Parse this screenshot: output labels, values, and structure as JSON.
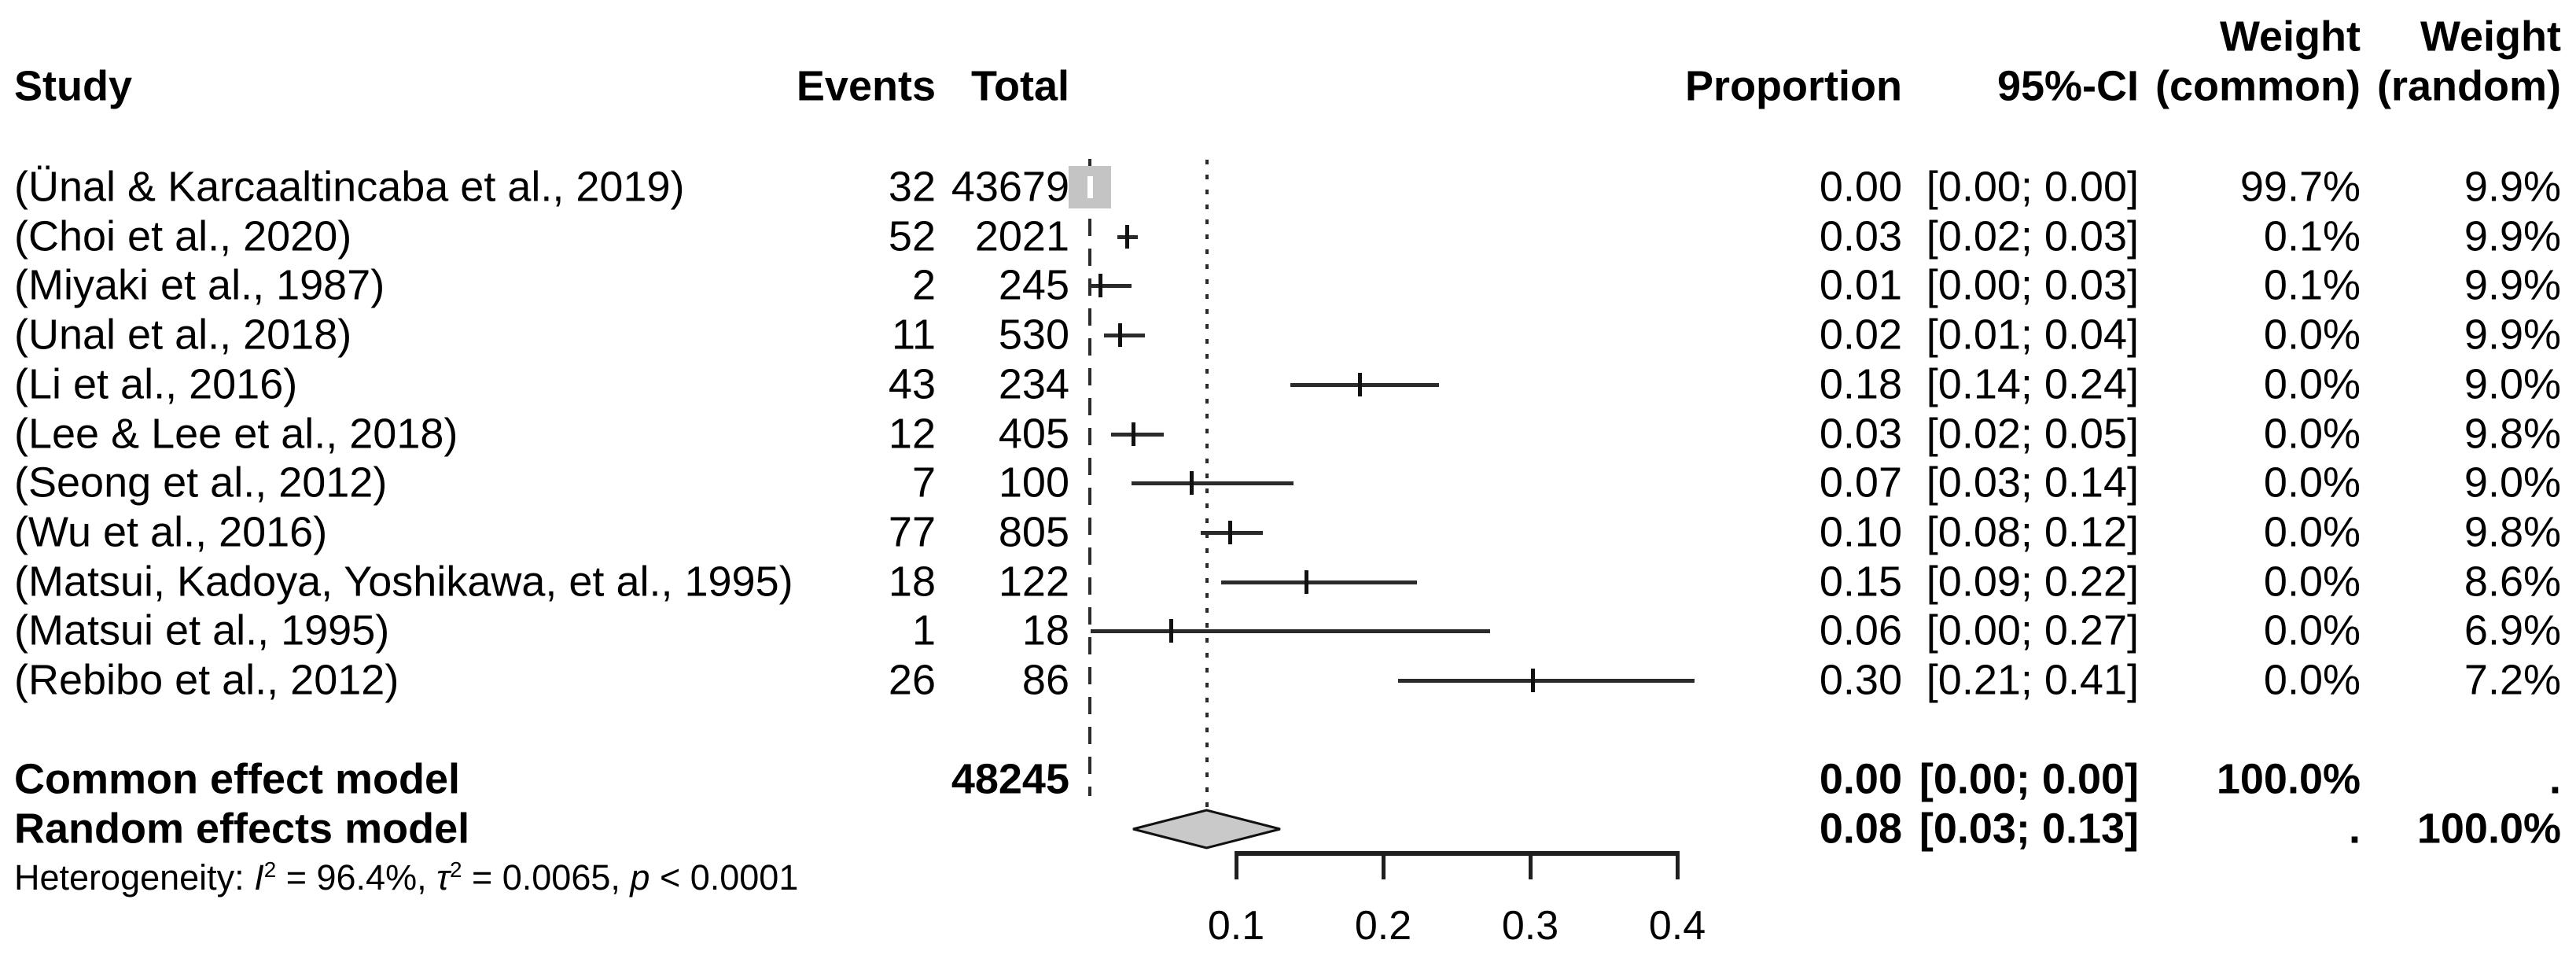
{
  "colors": {
    "background": "#ffffff",
    "text": "#000000",
    "line": "#2b2b2b",
    "square_fill": "#c4c4c4",
    "diamond_fill": "#c9c9c9",
    "diamond_stroke": "#111111"
  },
  "headers": {
    "study": "Study",
    "events": "Events",
    "total": "Total",
    "proportion": "Proportion",
    "ci": "95%-CI",
    "weight_line": "Weight",
    "weight_common_sub": "(common)",
    "weight_random_sub": "(random)"
  },
  "chart_data": {
    "type": "forest",
    "effect_measure": "Proportion",
    "x_axis": {
      "ticks": [
        0.1,
        0.2,
        0.3,
        0.4
      ],
      "tick_labels": [
        "0.1",
        "0.2",
        "0.3",
        "0.4"
      ],
      "range_shown": [
        0.0,
        0.45
      ],
      "grid": false
    },
    "reference_lines": [
      {
        "name": "common-effect-line",
        "style": "dashed",
        "value": 0.003
      },
      {
        "name": "random-effect-line",
        "style": "dotted",
        "value": 0.08
      }
    ],
    "studies": [
      {
        "study": "(Ünal & Karcaaltincaba et al., 2019)",
        "events": "32",
        "total": "43679",
        "proportion": "0.00",
        "ci": "[0.00; 0.00]",
        "weight_common": "99.7%",
        "weight_random": "9.9%",
        "point": 0.0007,
        "ci_lo": 0.0005,
        "ci_hi": 0.001,
        "marker": "large-square"
      },
      {
        "study": "(Choi et al., 2020)",
        "events": "52",
        "total": "2021",
        "proportion": "0.03",
        "ci": "[0.02; 0.03]",
        "weight_common": "0.1%",
        "weight_random": "9.9%",
        "point": 0.026,
        "ci_lo": 0.019,
        "ci_hi": 0.033,
        "marker": "point"
      },
      {
        "study": "(Miyaki et al., 1987)",
        "events": "2",
        "total": "245",
        "proportion": "0.01",
        "ci": "[0.00; 0.03]",
        "weight_common": "0.1%",
        "weight_random": "9.9%",
        "point": 0.008,
        "ci_lo": 0.001,
        "ci_hi": 0.029,
        "marker": "point"
      },
      {
        "study": "(Unal et al., 2018)",
        "events": "11",
        "total": "530",
        "proportion": "0.02",
        "ci": "[0.01; 0.04]",
        "weight_common": "0.0%",
        "weight_random": "9.9%",
        "point": 0.021,
        "ci_lo": 0.01,
        "ci_hi": 0.038,
        "marker": "point"
      },
      {
        "study": "(Li et al., 2016)",
        "events": "43",
        "total": "234",
        "proportion": "0.18",
        "ci": "[0.14; 0.24]",
        "weight_common": "0.0%",
        "weight_random": "9.0%",
        "point": 0.184,
        "ci_lo": 0.137,
        "ci_hi": 0.238,
        "marker": "point"
      },
      {
        "study": "(Lee & Lee et al., 2018)",
        "events": "12",
        "total": "405",
        "proportion": "0.03",
        "ci": "[0.02; 0.05]",
        "weight_common": "0.0%",
        "weight_random": "9.8%",
        "point": 0.03,
        "ci_lo": 0.015,
        "ci_hi": 0.051,
        "marker": "point"
      },
      {
        "study": "(Seong et al., 2012)",
        "events": "7",
        "total": "100",
        "proportion": "0.07",
        "ci": "[0.03; 0.14]",
        "weight_common": "0.0%",
        "weight_random": "9.0%",
        "point": 0.07,
        "ci_lo": 0.029,
        "ci_hi": 0.139,
        "marker": "point"
      },
      {
        "study": "(Wu et al., 2016)",
        "events": "77",
        "total": "805",
        "proportion": "0.10",
        "ci": "[0.08; 0.12]",
        "weight_common": "0.0%",
        "weight_random": "9.8%",
        "point": 0.096,
        "ci_lo": 0.076,
        "ci_hi": 0.118,
        "marker": "point"
      },
      {
        "study": "(Matsui, Kadoya, Yoshikawa, et al., 1995)",
        "events": "18",
        "total": "122",
        "proportion": "0.15",
        "ci": "[0.09; 0.22]",
        "weight_common": "0.0%",
        "weight_random": "8.6%",
        "point": 0.148,
        "ci_lo": 0.09,
        "ci_hi": 0.223,
        "marker": "point"
      },
      {
        "study": "(Matsui et al., 1995)",
        "events": "1",
        "total": "18",
        "proportion": "0.06",
        "ci": "[0.00; 0.27]",
        "weight_common": "0.0%",
        "weight_random": "6.9%",
        "point": 0.056,
        "ci_lo": 0.001,
        "ci_hi": 0.273,
        "marker": "point"
      },
      {
        "study": "(Rebibo et al., 2012)",
        "events": "26",
        "total": "86",
        "proportion": "0.30",
        "ci": "[0.21; 0.41]",
        "weight_common": "0.0%",
        "weight_random": "7.2%",
        "point": 0.302,
        "ci_lo": 0.21,
        "ci_hi": 0.412,
        "marker": "point"
      }
    ],
    "summaries": [
      {
        "label": "Common effect model",
        "total": "48245",
        "proportion": "0.00",
        "ci": "[0.00; 0.00]",
        "weight_common": "100.0%",
        "weight_random": ".",
        "point": 0.003,
        "ci_lo": 0.0,
        "ci_hi": 0.0,
        "diamond": false
      },
      {
        "label": "Random effects model",
        "total": "",
        "proportion": "0.08",
        "ci": "[0.03; 0.13]",
        "weight_common": ".",
        "weight_random": "100.0%",
        "point": 0.08,
        "ci_lo": 0.03,
        "ci_hi": 0.13,
        "diamond": true
      }
    ],
    "heterogeneity": {
      "prefix": "Heterogeneity: ",
      "i_sym": "I",
      "i_sup": "2",
      "i_val": " = 96.4%, ",
      "tau_sym": "τ",
      "tau_sup": "2",
      "tau_val": " = 0.0065, ",
      "p_sym": "p",
      "p_val": " < 0.0001"
    }
  }
}
